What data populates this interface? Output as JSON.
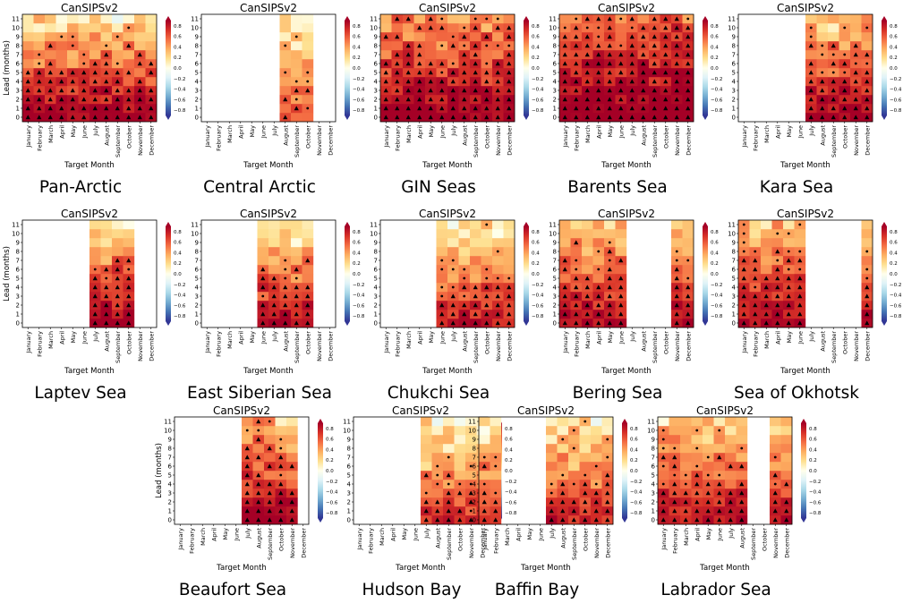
{
  "common": {
    "model": "CanSIPSv2",
    "xlabel": "Target Month",
    "ylabel": "Lead (months)",
    "months": [
      "January",
      "February",
      "March",
      "April",
      "May",
      "June",
      "July",
      "August",
      "September",
      "October",
      "November",
      "December"
    ],
    "leads": [
      0,
      1,
      2,
      3,
      4,
      5,
      6,
      7,
      8,
      9,
      10,
      11
    ],
    "colorbar_ticks": [
      "0.8",
      "0.6",
      "0.4",
      "0.2",
      "0.0",
      "−0.2",
      "−0.4",
      "−0.6",
      "−0.8"
    ],
    "color_scale": {
      "min": -0.8,
      "max": 0.8,
      "colormap": "RdYlBu_r"
    },
    "marker_legend": {
      "triangle": "high-significance",
      "dot": "significance"
    }
  },
  "chart_data": [
    {
      "type": "heatmap",
      "region": "Pan-Arctic",
      "active_months": [
        0,
        1,
        2,
        3,
        4,
        5,
        6,
        7,
        8,
        9,
        10,
        11
      ],
      "peak": 0.85,
      "decay": 0.06,
      "ylabel_shown": true
    },
    {
      "type": "heatmap",
      "region": "Central Arctic",
      "active_months": [
        7,
        8,
        9
      ],
      "peak": 0.55,
      "decay": 0.04,
      "ylabel_shown": false
    },
    {
      "type": "heatmap",
      "region": "GIN Seas",
      "active_months": [
        0,
        1,
        2,
        3,
        4,
        5,
        6,
        7,
        8,
        9,
        10,
        11
      ],
      "peak": 0.85,
      "decay": 0.04,
      "ylabel_shown": false
    },
    {
      "type": "heatmap",
      "region": "Barents Sea",
      "active_months": [
        0,
        1,
        2,
        3,
        4,
        5,
        6,
        7,
        8,
        9,
        10,
        11
      ],
      "peak": 0.9,
      "decay": 0.035,
      "ylabel_shown": false
    },
    {
      "type": "heatmap",
      "region": "Kara Sea",
      "active_months": [
        6,
        7,
        8,
        9,
        10,
        11
      ],
      "peak": 0.85,
      "decay": 0.055,
      "ylabel_shown": false
    },
    {
      "type": "heatmap",
      "region": "Laptev Sea",
      "active_months": [
        6,
        7,
        8,
        9
      ],
      "peak": 0.85,
      "decay": 0.06,
      "ylabel_shown": true
    },
    {
      "type": "heatmap",
      "region": "East Siberian Sea",
      "active_months": [
        5,
        6,
        7,
        8,
        9
      ],
      "peak": 0.8,
      "decay": 0.06,
      "ylabel_shown": false
    },
    {
      "type": "heatmap",
      "region": "Chukchi Sea",
      "active_months": [
        5,
        6,
        7,
        8,
        9,
        10,
        11
      ],
      "peak": 0.75,
      "decay": 0.055,
      "ylabel_shown": false
    },
    {
      "type": "heatmap",
      "region": "Bering Sea",
      "active_months": [
        0,
        1,
        2,
        3,
        4,
        5,
        10,
        11
      ],
      "peak": 0.8,
      "decay": 0.05,
      "ylabel_shown": false
    },
    {
      "type": "heatmap",
      "region": "Sea of Okhotsk",
      "active_months": [
        0,
        1,
        2,
        3,
        4,
        5,
        11
      ],
      "peak": 0.8,
      "decay": 0.045,
      "ylabel_shown": false
    },
    {
      "type": "heatmap",
      "region": "Beaufort Sea",
      "active_months": [
        6,
        7,
        8,
        9,
        10
      ],
      "peak": 0.85,
      "decay": 0.05,
      "ylabel_shown": true
    },
    {
      "type": "heatmap",
      "region": "Hudson Bay",
      "active_months": [
        6,
        7,
        8,
        9,
        10,
        11
      ],
      "peak": 0.65,
      "decay": 0.05,
      "ylabel_shown": false
    },
    {
      "type": "heatmap",
      "region": "Baffin Bay",
      "active_months": [
        0,
        1,
        6,
        7,
        8,
        9,
        10,
        11
      ],
      "peak": 0.7,
      "decay": 0.05,
      "ylabel_shown": false
    },
    {
      "type": "heatmap",
      "region": "Labrador Sea",
      "active_months": [
        0,
        1,
        2,
        3,
        4,
        5,
        6,
        7,
        10,
        11
      ],
      "peak": 0.75,
      "decay": 0.045,
      "ylabel_shown": false
    }
  ]
}
